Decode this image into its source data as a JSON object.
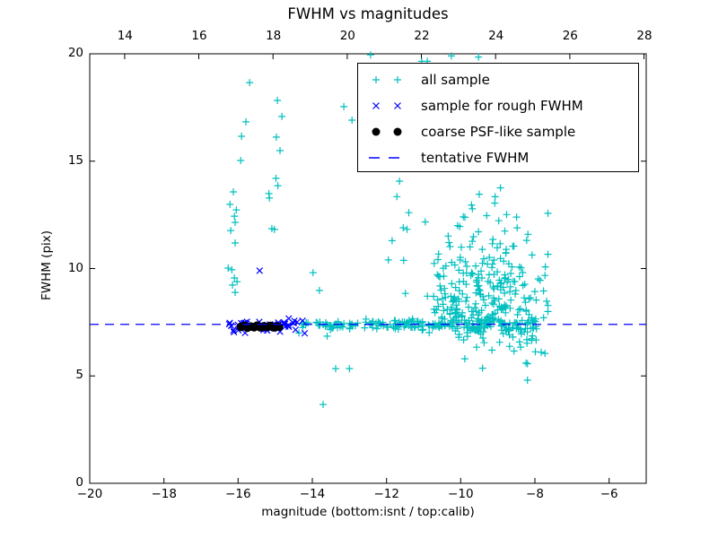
{
  "title": "FWHM vs magnitudes",
  "axes": {
    "x_bottom": {
      "tick_labels": [
        "−20",
        "−18",
        "−16",
        "−14",
        "−12",
        "−10",
        "−8",
        "−6"
      ],
      "tick_values": [
        -20,
        -18,
        -16,
        -14,
        -12,
        -10,
        -8,
        -6
      ],
      "range": [
        -20,
        -5
      ]
    },
    "x_top": {
      "tick_labels": [
        "14",
        "16",
        "18",
        "20",
        "22",
        "24",
        "26",
        "28"
      ],
      "tick_values": [
        14,
        16,
        18,
        20,
        22,
        24,
        26,
        28
      ],
      "range": [
        13.06,
        28.06
      ]
    },
    "y": {
      "label": "FWHM (pix)",
      "tick_labels": [
        "0",
        "5",
        "10",
        "15",
        "20"
      ],
      "tick_values": [
        0,
        5,
        10,
        15,
        20
      ],
      "range": [
        0,
        20
      ]
    },
    "x_label": "magnitude (bottom:isnt / top:calib)"
  },
  "colors": {
    "all_sample": "#00bfbf",
    "rough_fwhm": "#0000ff",
    "coarse_psf": "#000000",
    "tentative_line": "#0000ff",
    "axis": "#000000",
    "background": "#ffffff"
  },
  "chart_data": {
    "type": "scatter",
    "title": "FWHM vs magnitudes",
    "xlabel": "magnitude (bottom:isnt / top:calib)",
    "ylabel": "FWHM (pix)",
    "xlim_bottom": [
      -20,
      -5
    ],
    "xlim_top": [
      13.06,
      28.06
    ],
    "ylim": [
      0,
      20
    ],
    "grid": false,
    "legend_position": "upper right",
    "tentative_fwhm_value": 7.4,
    "series": [
      {
        "name": "all sample",
        "marker": "plus",
        "color": "#00bfbf",
        "points": [
          [
            -15.69,
            18.66
          ],
          [
            -14.94,
            17.83
          ],
          [
            -14.82,
            17.08
          ],
          [
            -15.79,
            16.83
          ],
          [
            -15.91,
            16.16
          ],
          [
            -14.97,
            16.12
          ],
          [
            -14.87,
            15.49
          ],
          [
            -15.93,
            15.03
          ],
          [
            -14.98,
            14.2
          ],
          [
            -14.93,
            13.86
          ],
          [
            -15.17,
            13.49
          ],
          [
            -15.16,
            13.28
          ],
          [
            -16.13,
            13.57
          ],
          [
            -16.22,
            12.99
          ],
          [
            -16.05,
            12.73
          ],
          [
            -16.1,
            12.44
          ],
          [
            -16.08,
            12.15
          ],
          [
            -16.2,
            11.77
          ],
          [
            -15.09,
            11.86
          ],
          [
            -15.02,
            11.82
          ],
          [
            -16.08,
            11.19
          ],
          [
            -16.27,
            10.02
          ],
          [
            -16.17,
            9.94
          ],
          [
            -16.1,
            9.56
          ],
          [
            -16.03,
            9.39
          ],
          [
            -16.15,
            9.23
          ],
          [
            -16.08,
            8.89
          ],
          [
            -13.98,
            9.81
          ],
          [
            -13.81,
            8.98
          ],
          [
            -13.15,
            17.54
          ],
          [
            -12.93,
            16.91
          ],
          [
            -13.37,
            5.34
          ],
          [
            -13.0,
            5.34
          ],
          [
            -13.71,
            3.67
          ],
          [
            -13.6,
            6.85
          ],
          [
            -14.36,
            7.0
          ],
          [
            -12.43,
            19.95
          ],
          [
            -11.05,
            19.65
          ],
          [
            -10.9,
            19.65
          ],
          [
            -10.25,
            19.9
          ],
          [
            -9.52,
            19.85
          ],
          [
            -9.89,
            5.8
          ],
          [
            -8.24,
            5.6
          ],
          [
            -7.83,
            6.1
          ],
          [
            -8.2,
            4.8
          ],
          [
            -7.73,
            6.05
          ],
          [
            -11.65,
            14.07
          ],
          [
            -11.72,
            13.35
          ],
          [
            -11.4,
            12.6
          ],
          [
            -11.85,
            11.3
          ],
          [
            -11.95,
            10.4
          ],
          [
            -11.55,
            11.9
          ]
        ],
        "clusters": [
          {
            "type": "band",
            "x": [
              -14.3,
              -12.0
            ],
            "y_mean": 7.38,
            "y_sd": 0.1,
            "n": 60
          },
          {
            "type": "band",
            "x": [
              -12.0,
              -10.2
            ],
            "y_mean": 7.38,
            "y_sd": 0.13,
            "n": 75
          },
          {
            "type": "band",
            "x": [
              -10.2,
              -7.95
            ],
            "y_mean": 7.33,
            "y_sd": 0.25,
            "n": 115
          },
          {
            "type": "band",
            "x": [
              -9.7,
              -7.9
            ],
            "y_mean": 6.8,
            "y_sd": 0.55,
            "n": 26,
            "y_clip": [
              4.95,
              7.25
            ]
          },
          {
            "type": "blob",
            "x_mean": -9.35,
            "x_sd": 0.95,
            "x_clip": [
              -11.95,
              -7.65
            ],
            "y_base": 7.55,
            "y_scale": 2.3,
            "y_max": 14.3,
            "n": 235
          }
        ]
      },
      {
        "name": "sample for rough FWHM",
        "marker": "x",
        "color": "#0000ff",
        "points": [
          [
            -15.42,
            9.9
          ]
        ],
        "clusters": [
          {
            "type": "band",
            "x": [
              -16.25,
              -14.12
            ],
            "y_mean": 7.33,
            "y_sd": 0.14,
            "n": 50
          }
        ]
      },
      {
        "name": "coarse PSF-like sample",
        "marker": "dot",
        "color": "#000000",
        "points": [
          [
            -15.92,
            7.28
          ],
          [
            -15.83,
            7.33
          ],
          [
            -15.75,
            7.25
          ],
          [
            -15.66,
            7.3
          ],
          [
            -15.57,
            7.27
          ],
          [
            -15.49,
            7.34
          ],
          [
            -15.4,
            7.26
          ],
          [
            -15.31,
            7.31
          ],
          [
            -15.22,
            7.28
          ],
          [
            -15.13,
            7.33
          ],
          [
            -15.05,
            7.26
          ],
          [
            -14.97,
            7.3
          ],
          [
            -14.9,
            7.28
          ]
        ],
        "clusters": []
      },
      {
        "name": "tentative FWHM",
        "marker": "dashed-line",
        "color": "#0000ff",
        "y": 7.4
      }
    ]
  }
}
